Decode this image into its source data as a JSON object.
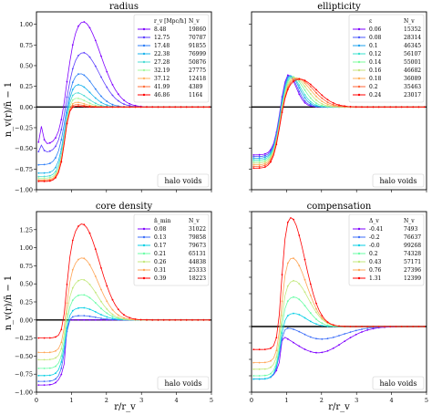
{
  "figure": {
    "shared_ylabel": "n_v(r)/n̄ − 1",
    "shared_xlabel": "r/r_v"
  },
  "chart_data": [
    {
      "type": "line",
      "title": "radius",
      "xlim": [
        0,
        5
      ],
      "ylim": [
        -1.0,
        1.15
      ],
      "xticks": [],
      "yticks": [
        -1.0,
        -0.75,
        -0.5,
        -0.25,
        0.0,
        0.25,
        0.5,
        0.75,
        1.0
      ],
      "show_ylabel": true,
      "show_xlabel": false,
      "label_box": "halo voids",
      "legend": {
        "placement": "top-right",
        "param_header": "r_v [Mpc/h]",
        "count_header": "N_v"
      },
      "series": [
        {
          "name": "8.48",
          "count": "19860",
          "color": "#7f00ff",
          "params": {
            "dip": -0.45,
            "h": 1.05,
            "c": 1.3,
            "w": 0.75,
            "b": 0.12,
            "spike": 1
          }
        },
        {
          "name": "12.75",
          "count": "70787",
          "color": "#5b3cfe",
          "params": {
            "dip": -0.55,
            "h": 0.67,
            "c": 1.3,
            "w": 0.7,
            "b": 0.12,
            "spike": 0.4
          }
        },
        {
          "name": "17.48",
          "count": "91855",
          "color": "#2c7ef7",
          "params": {
            "dip": -0.7,
            "h": 0.42,
            "c": 1.2,
            "w": 0.6,
            "b": 0.12
          }
        },
        {
          "name": "22.38",
          "count": "76999",
          "color": "#1ab3ec",
          "params": {
            "dip": -0.8,
            "h": 0.28,
            "c": 1.15,
            "w": 0.55,
            "b": 0.1
          }
        },
        {
          "name": "27.28",
          "count": "50876",
          "color": "#4cdcd4",
          "params": {
            "dip": -0.84,
            "h": 0.18,
            "c": 1.1,
            "w": 0.5,
            "b": 0.09
          }
        },
        {
          "name": "32.19",
          "count": "27775",
          "color": "#a4f89f",
          "params": {
            "dip": -0.86,
            "h": 0.11,
            "c": 1.1,
            "w": 0.45,
            "b": 0.08
          }
        },
        {
          "name": "37.12",
          "count": "12418",
          "color": "#ffb360",
          "params": {
            "dip": -0.88,
            "h": 0.06,
            "c": 1.1,
            "w": 0.4,
            "b": 0.08
          }
        },
        {
          "name": "41.99",
          "count": "4389",
          "color": "#ff6e3a",
          "params": {
            "dip": -0.89,
            "h": 0.03,
            "c": 1.1,
            "w": 0.35,
            "b": 0.07
          }
        },
        {
          "name": "46.86",
          "count": "1164",
          "color": "#ff0000",
          "params": {
            "dip": -0.9,
            "h": 0.01,
            "c": 1.1,
            "w": 0.3,
            "b": 0.07
          }
        }
      ]
    },
    {
      "type": "line",
      "title": "ellipticity",
      "xlim": [
        0,
        5
      ],
      "ylim": [
        -1.0,
        1.15
      ],
      "xticks": [],
      "yticks": [],
      "show_ylabel": false,
      "show_xlabel": false,
      "label_box": "halo voids",
      "legend": {
        "placement": "top-right",
        "param_header": "ε",
        "count_header": "N_v"
      },
      "series": [
        {
          "name": "0.06",
          "count": "15352",
          "color": "#7f00ff",
          "params": {
            "dip": -0.58,
            "h": 0.5,
            "c": 0.95,
            "w": 0.38,
            "b": 0.11
          }
        },
        {
          "name": "0.08",
          "count": "28314",
          "color": "#4a57fb",
          "params": {
            "dip": -0.6,
            "h": 0.47,
            "c": 0.98,
            "w": 0.4,
            "b": 0.11
          }
        },
        {
          "name": "0.1",
          "count": "46345",
          "color": "#1ea2ee",
          "params": {
            "dip": -0.62,
            "h": 0.44,
            "c": 1.02,
            "w": 0.43,
            "b": 0.11
          }
        },
        {
          "name": "0.12",
          "count": "56107",
          "color": "#37e0ce",
          "params": {
            "dip": -0.64,
            "h": 0.41,
            "c": 1.06,
            "w": 0.46,
            "b": 0.11
          }
        },
        {
          "name": "0.14",
          "count": "55001",
          "color": "#7cfd9c",
          "params": {
            "dip": -0.66,
            "h": 0.39,
            "c": 1.12,
            "w": 0.5,
            "b": 0.11
          }
        },
        {
          "name": "0.16",
          "count": "46682",
          "color": "#c8e27c",
          "params": {
            "dip": -0.68,
            "h": 0.37,
            "c": 1.18,
            "w": 0.55,
            "b": 0.11
          }
        },
        {
          "name": "0.18",
          "count": "36089",
          "color": "#ffb05c",
          "params": {
            "dip": -0.7,
            "h": 0.36,
            "c": 1.24,
            "w": 0.6,
            "b": 0.11
          }
        },
        {
          "name": "0.2",
          "count": "35463",
          "color": "#ff6437",
          "params": {
            "dip": -0.72,
            "h": 0.35,
            "c": 1.3,
            "w": 0.65,
            "b": 0.11
          }
        },
        {
          "name": "0.24",
          "count": "23017",
          "color": "#ff0000",
          "params": {
            "dip": -0.74,
            "h": 0.34,
            "c": 1.36,
            "w": 0.7,
            "b": 0.11
          }
        }
      ]
    },
    {
      "type": "line",
      "title": "core density",
      "xlim": [
        0,
        5
      ],
      "ylim": [
        -1.0,
        1.5
      ],
      "xticks": [
        0,
        1,
        2,
        3,
        4,
        5
      ],
      "yticks": [
        -1.0,
        -0.75,
        -0.5,
        -0.25,
        0.0,
        0.25,
        0.5,
        0.75,
        1.0,
        1.25
      ],
      "show_ylabel": true,
      "show_xlabel": true,
      "label_box": "halo voids",
      "legend": {
        "placement": "top-right",
        "param_header": "n̂_min",
        "count_header": "N_v"
      },
      "series": [
        {
          "name": "0.08",
          "count": "31022",
          "color": "#7f00ff",
          "params": {
            "dip": -0.9,
            "h": 0.0,
            "c": 1.2,
            "w": 0.5,
            "b": 0.02
          }
        },
        {
          "name": "0.13",
          "count": "79858",
          "color": "#3c6ef9",
          "params": {
            "dip": -0.85,
            "h": 0.06,
            "c": 1.3,
            "w": 0.55,
            "b": 0.05
          }
        },
        {
          "name": "0.17",
          "count": "79673",
          "color": "#07cfe4",
          "params": {
            "dip": -0.77,
            "h": 0.17,
            "c": 1.3,
            "w": 0.6,
            "b": 0.06
          }
        },
        {
          "name": "0.21",
          "count": "65131",
          "color": "#6afda6",
          "params": {
            "dip": -0.67,
            "h": 0.35,
            "c": 1.3,
            "w": 0.62,
            "b": 0.06
          }
        },
        {
          "name": "0.26",
          "count": "44838",
          "color": "#c3e87d",
          "params": {
            "dip": -0.55,
            "h": 0.56,
            "c": 1.3,
            "w": 0.62,
            "b": 0.06
          }
        },
        {
          "name": "0.31",
          "count": "25333",
          "color": "#ffa556",
          "params": {
            "dip": -0.45,
            "h": 0.86,
            "c": 1.3,
            "w": 0.65,
            "b": 0.06
          }
        },
        {
          "name": "0.39",
          "count": "18223",
          "color": "#ff0000",
          "params": {
            "dip": -0.25,
            "h": 1.33,
            "c": 1.3,
            "w": 0.7,
            "b": 0.06
          }
        }
      ]
    },
    {
      "type": "line",
      "title": "compensation",
      "xlim": [
        0,
        5
      ],
      "ylim": [
        -1.0,
        1.75
      ],
      "xticks": [
        0,
        1,
        2,
        3,
        4,
        5
      ],
      "yticks": [],
      "show_ylabel": false,
      "show_xlabel": true,
      "label_box": "halo voids",
      "legend": {
        "placement": "top-right",
        "param_header": "Δ_v",
        "count_header": "N_v"
      },
      "series": [
        {
          "name": "-0.41",
          "count": "7493",
          "color": "#7f00ff",
          "params": {
            "dip": -0.8,
            "h": 0.0,
            "c": 1.2,
            "w": 0.5,
            "b": 0.02,
            "tail": -0.4
          }
        },
        {
          "name": "-0.2",
          "count": "76637",
          "color": "#3c6ef9",
          "params": {
            "dip": -0.8,
            "h": 0.08,
            "c": 1.2,
            "w": 0.5,
            "b": 0.05,
            "tail": -0.2
          }
        },
        {
          "name": "-0.0",
          "count": "99268",
          "color": "#07cfe4",
          "params": {
            "dip": -0.8,
            "h": 0.2,
            "c": 1.2,
            "w": 0.5,
            "b": 0.06
          }
        },
        {
          "name": "0.2",
          "count": "74328",
          "color": "#6afda6",
          "params": {
            "dip": -0.75,
            "h": 0.45,
            "c": 1.2,
            "w": 0.55,
            "b": 0.06
          }
        },
        {
          "name": "0.43",
          "count": "57171",
          "color": "#c3e87d",
          "params": {
            "dip": -0.65,
            "h": 0.7,
            "c": 1.2,
            "w": 0.6,
            "b": 0.06
          }
        },
        {
          "name": "0.76",
          "count": "27396",
          "color": "#ffa556",
          "params": {
            "dip": -0.55,
            "h": 1.05,
            "c": 1.15,
            "w": 0.6,
            "b": 0.06
          }
        },
        {
          "name": "1.31",
          "count": "12399",
          "color": "#ff0000",
          "params": {
            "dip": -0.35,
            "h": 1.68,
            "c": 1.1,
            "w": 0.6,
            "b": 0.06
          }
        }
      ]
    }
  ]
}
